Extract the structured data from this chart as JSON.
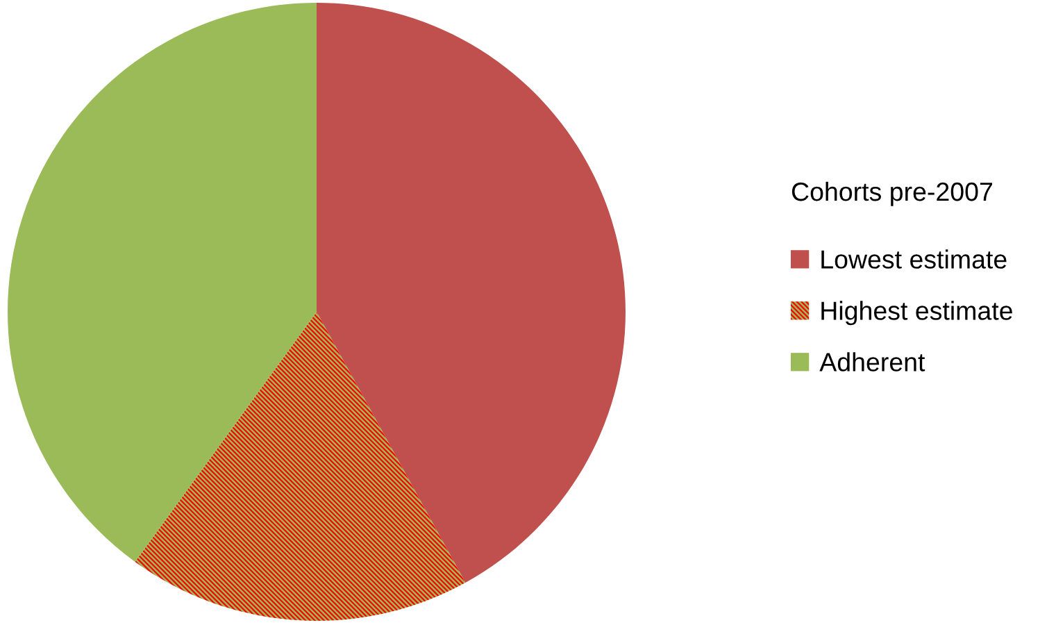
{
  "chart_data": {
    "type": "pie",
    "legend_title": "Cohorts pre-2007",
    "categories": [
      "Lowest estimate",
      "Highest estimate",
      "Adherent"
    ],
    "values": [
      42,
      18,
      40
    ],
    "colors": [
      "#c0504d",
      "#9bbb59",
      "#9bbb59"
    ],
    "legend": "right"
  }
}
